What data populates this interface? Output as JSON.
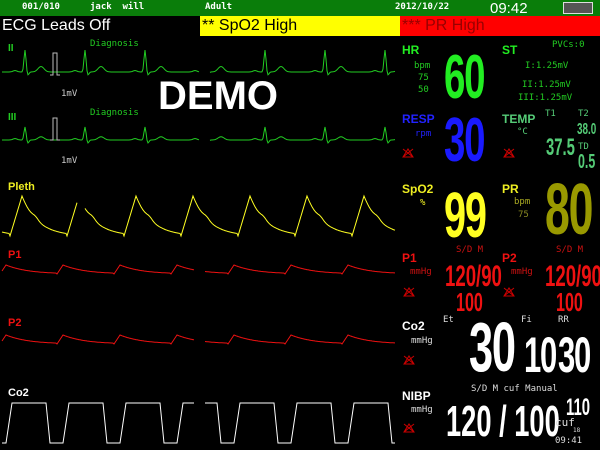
{
  "status_bar": {
    "bed": "001/010",
    "patient": "jack  will",
    "patient_type": "Adult",
    "date": "2012/10/22",
    "time": "09:42",
    "power_icon": "ac-power-battery-icon"
  },
  "alarms": [
    {
      "text": "ECG Leads Off",
      "bg": "#000000",
      "fg": "#ffffff"
    },
    {
      "text": "** SpO2 High",
      "bg": "#ffff00",
      "fg": "#000000"
    },
    {
      "text": "*** PR High",
      "bg": "#ff0000",
      "fg": "#990000"
    }
  ],
  "watermark": "DEMO",
  "waves": {
    "ecg1": {
      "lead": "II",
      "mode": "Diagnosis",
      "scale": "1mV"
    },
    "ecg2": {
      "lead": "III",
      "mode": "Diagnosis",
      "scale": "1mV"
    },
    "pleth": {
      "label": "Pleth"
    },
    "p1": {
      "label": "P1"
    },
    "p2": {
      "label": "P2"
    },
    "co2": {
      "label": "Co2"
    }
  },
  "colors": {
    "ecg": "#22cc22",
    "hr": "#22ee22",
    "resp": "#1a1aff",
    "spo2": "#ffff22",
    "pr": "#999900",
    "ibp": "#ee1111",
    "co2": "#ffffff",
    "temp": "#55cc77"
  },
  "params": {
    "hr": {
      "label": "HR",
      "unit": "bpm",
      "high": "75",
      "low": "50",
      "value": "60"
    },
    "st": {
      "label": "ST",
      "pvcs": "PVCs:0",
      "i": "I:1.25mV",
      "ii": "II:1.25mV",
      "iii": "III:1.25mV"
    },
    "resp": {
      "label": "RESP",
      "unit": "rpm",
      "value": "30"
    },
    "temp": {
      "label": "TEMP",
      "unit": "°C",
      "t1_label": "T1",
      "t2_label": "T2",
      "t1": "37.5",
      "t2": "38.0",
      "td_label": "TD",
      "td": "0.5"
    },
    "spo2": {
      "label": "SpO2",
      "unit": "%",
      "value": "99"
    },
    "pr": {
      "label": "PR",
      "unit": "bpm",
      "limit": "75",
      "value": "80"
    },
    "p1": {
      "label": "P1",
      "mode": "S/D M",
      "unit": "mmHg",
      "sd": "120/90",
      "mean": "100"
    },
    "p2": {
      "label": "P2",
      "mode": "S/D M",
      "unit": "mmHg",
      "sd": "120/90",
      "mean": "100"
    },
    "co2": {
      "label": "Co2",
      "unit": "mmHg",
      "et_label": "Et",
      "et": "30",
      "fi_label": "Fi",
      "fi": "10",
      "rr_label": "RR",
      "rr": "30"
    },
    "nibp": {
      "label": "NIBP",
      "unit": "mmHg",
      "mode": "S/D M cuf Manual",
      "sd": "120 / 100",
      "mean": "110",
      "cuf_label": "cuf",
      "cuf": "18",
      "time": "09:41"
    }
  }
}
